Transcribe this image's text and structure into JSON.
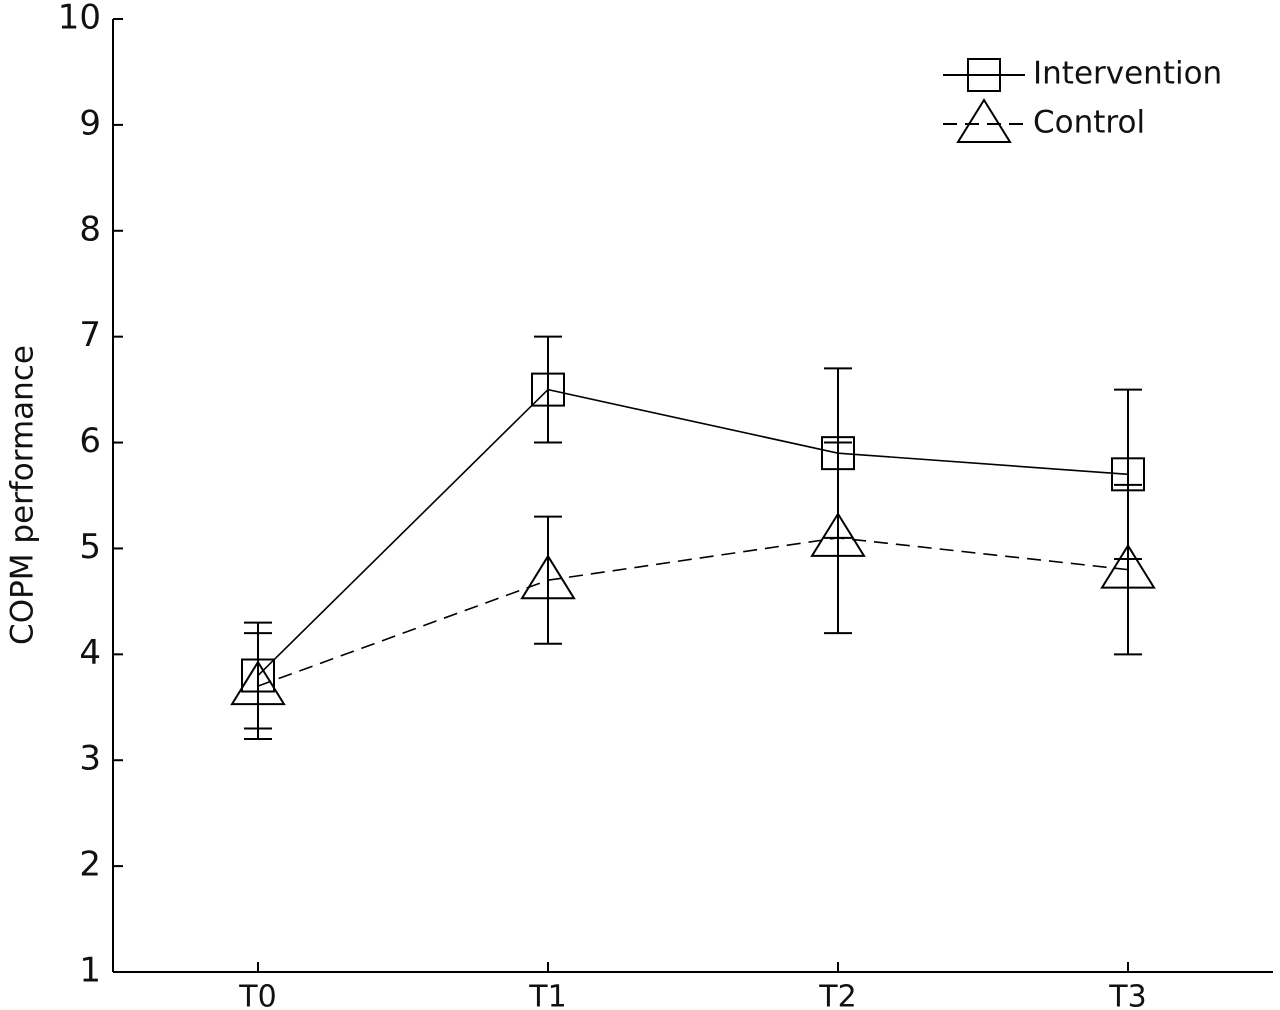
{
  "chart_data": {
    "type": "line",
    "y_label": "COPM performance",
    "categories": [
      "T0",
      "T1",
      "T2",
      "T3"
    ],
    "series": [
      {
        "name": "Intervention",
        "color": "#000000",
        "marker": "square",
        "dashed": false,
        "values": [
          3.8,
          6.5,
          5.9,
          5.7
        ],
        "errors": [
          0.5,
          0.5,
          0.8,
          0.8
        ]
      },
      {
        "name": "Control",
        "color": "#000000",
        "marker": "triangle",
        "dashed": true,
        "values": [
          3.7,
          4.7,
          5.1,
          4.8
        ],
        "errors": [
          0.5,
          0.6,
          0.9,
          0.8
        ]
      }
    ],
    "ylim": [
      1,
      10
    ],
    "yticks": [
      1,
      2,
      3,
      4,
      5,
      6,
      7,
      8,
      9,
      10
    ],
    "grid": false,
    "legend": "upper right"
  }
}
